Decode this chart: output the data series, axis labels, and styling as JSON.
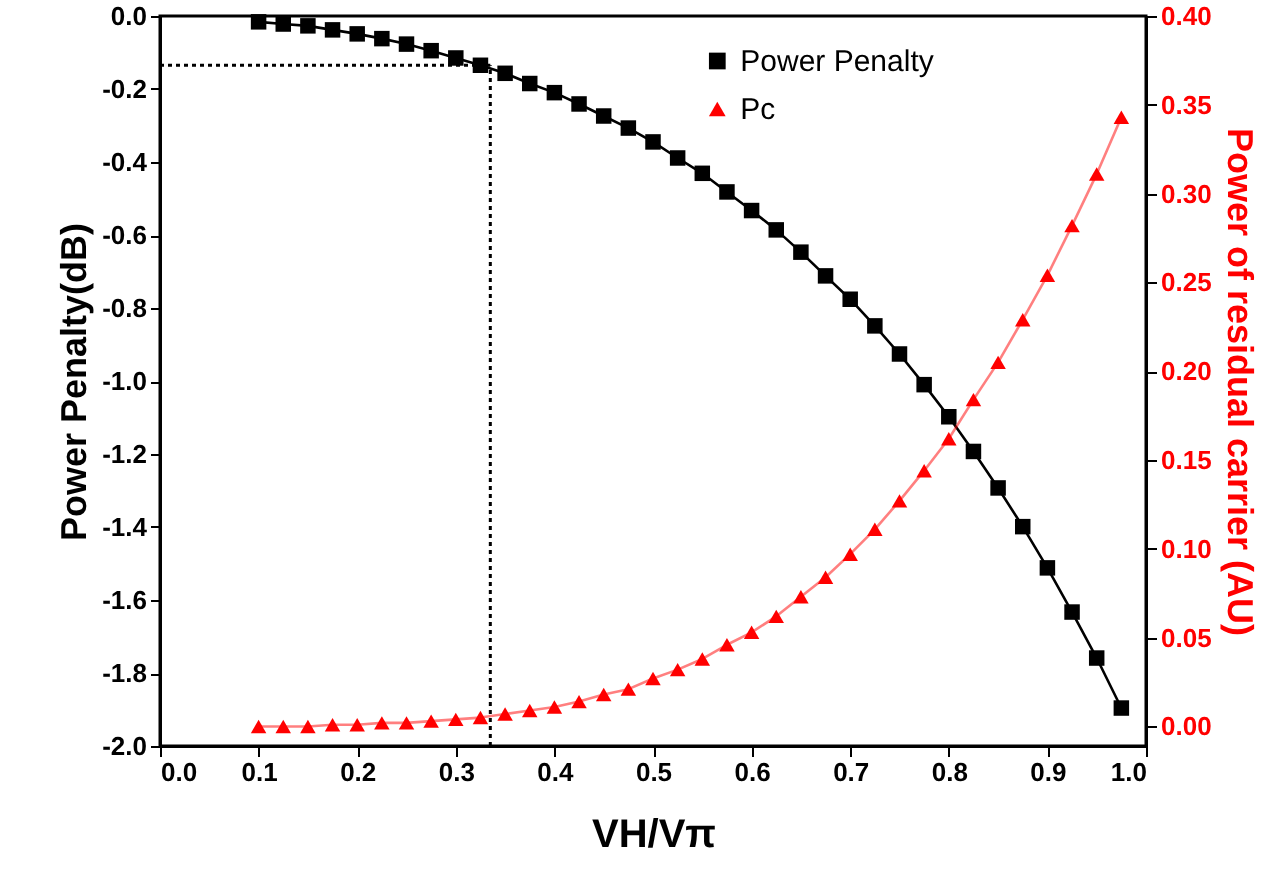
{
  "chart_data": {
    "type": "line",
    "xlabel": "VH/Vπ",
    "ylabel": "Power Penalty(dB)",
    "y2label": "Power of residual carrier (AU)",
    "x": [
      0.1,
      0.125,
      0.15,
      0.175,
      0.2,
      0.225,
      0.25,
      0.275,
      0.3,
      0.325,
      0.35,
      0.375,
      0.4,
      0.425,
      0.45,
      0.475,
      0.5,
      0.525,
      0.55,
      0.575,
      0.6,
      0.625,
      0.65,
      0.675,
      0.7,
      0.725,
      0.75,
      0.775,
      0.8,
      0.825,
      0.85,
      0.875,
      0.9,
      0.925,
      0.95,
      0.975
    ],
    "series": [
      {
        "name": "Power Penalty",
        "color": "#000000",
        "marker": "square",
        "values": [
          -0.016,
          -0.022,
          -0.027,
          -0.038,
          -0.049,
          -0.062,
          -0.077,
          -0.095,
          -0.115,
          -0.135,
          -0.157,
          -0.185,
          -0.21,
          -0.241,
          -0.274,
          -0.307,
          -0.345,
          -0.389,
          -0.431,
          -0.482,
          -0.533,
          -0.586,
          -0.647,
          -0.712,
          -0.776,
          -0.849,
          -0.926,
          -1.01,
          -1.098,
          -1.193,
          -1.293,
          -1.399,
          -1.512,
          -1.633,
          -1.759,
          -1.896
        ]
      },
      {
        "name": "Pc",
        "color": "#ff0000",
        "marker": "triangle",
        "axis": "y2",
        "values": [
          0.0,
          0.0,
          0.0,
          0.001,
          0.001,
          0.002,
          0.002,
          0.003,
          0.004,
          0.005,
          0.007,
          0.009,
          0.011,
          0.014,
          0.018,
          0.021,
          0.027,
          0.032,
          0.038,
          0.046,
          0.053,
          0.062,
          0.073,
          0.084,
          0.097,
          0.111,
          0.127,
          0.144,
          0.162,
          0.184,
          0.205,
          0.229,
          0.254,
          0.282,
          0.311,
          0.343
        ]
      }
    ],
    "xlim": [
      0.0,
      1.0
    ],
    "xticks": [
      {
        "value": 0,
        "label": "0.0"
      },
      {
        "value": 0.1,
        "label": "0.1"
      },
      {
        "value": 0.2,
        "label": "0.2"
      },
      {
        "value": 0.3,
        "label": "0.3"
      },
      {
        "value": 0.4,
        "label": "0.4"
      },
      {
        "value": 0.5,
        "label": "0.5"
      },
      {
        "value": 0.6,
        "label": "0.6"
      },
      {
        "value": 0.7,
        "label": "0.7"
      },
      {
        "value": 0.8,
        "label": "0.8"
      },
      {
        "value": 0.9,
        "label": "0.9"
      },
      {
        "value": 1,
        "label": "1.0"
      }
    ],
    "ylim": [
      -2.0,
      0.0
    ],
    "yticks": [
      {
        "value": -2,
        "label": "-2.0"
      },
      {
        "value": -1.8,
        "label": "-1.8"
      },
      {
        "value": -1.6,
        "label": "-1.6"
      },
      {
        "value": -1.4,
        "label": "-1.4"
      },
      {
        "value": -1.2,
        "label": "-1.2"
      },
      {
        "value": -1,
        "label": "-1.0"
      },
      {
        "value": -0.8,
        "label": "-0.8"
      },
      {
        "value": -0.6,
        "label": "-0.6"
      },
      {
        "value": -0.4,
        "label": "-0.4"
      },
      {
        "value": -0.2,
        "label": "-0.2"
      },
      {
        "value": 0,
        "label": "0.0"
      }
    ],
    "y2lim": [
      -0.011,
      0.4
    ],
    "y2ticks": [
      {
        "value": 0,
        "label": "0.00"
      },
      {
        "value": 0.05,
        "label": "0.05"
      },
      {
        "value": 0.1,
        "label": "0.10"
      },
      {
        "value": 0.15,
        "label": "0.15"
      },
      {
        "value": 0.2,
        "label": "0.20"
      },
      {
        "value": 0.25,
        "label": "0.25"
      },
      {
        "value": 0.3,
        "label": "0.30"
      },
      {
        "value": 0.35,
        "label": "0.35"
      },
      {
        "value": 0.4,
        "label": "0.40"
      }
    ],
    "ref_lines": [
      {
        "axis": "y",
        "value": -0.135,
        "line_style": "dotted"
      },
      {
        "axis": "x",
        "value": 0.335,
        "line_style": "dotted"
      }
    ],
    "legend": "top right",
    "grid": false
  }
}
